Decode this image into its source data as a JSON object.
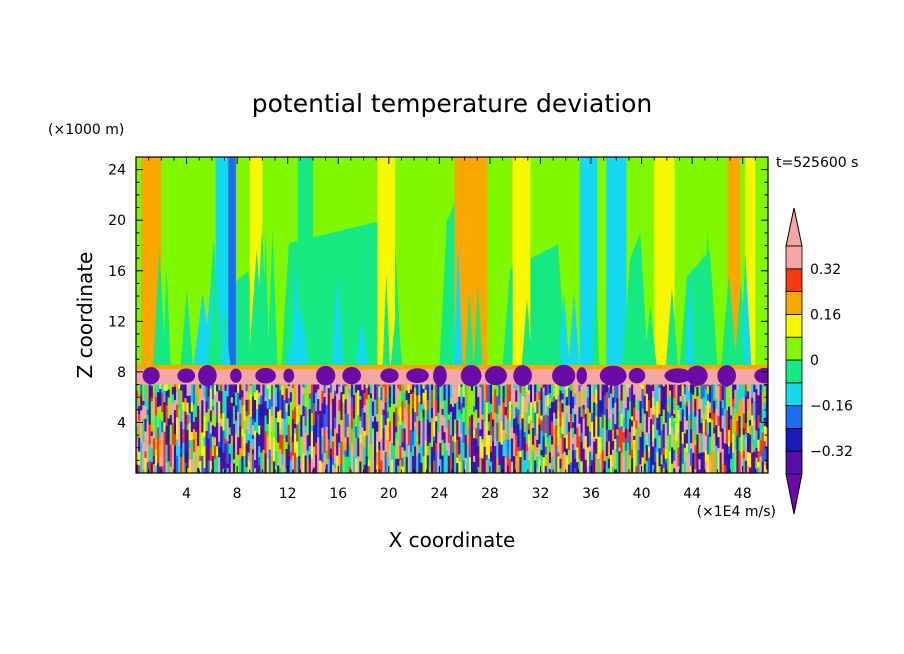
{
  "chart_data": {
    "type": "heatmap",
    "title": "potential temperature deviation",
    "xlabel": "X coordinate",
    "ylabel": "Z coordinate",
    "x_unit": "(×1E4 m/s)",
    "y_unit": "(×1000 m)",
    "time_label": "t=525600 s",
    "xlim": [
      0,
      50
    ],
    "ylim": [
      0,
      25
    ],
    "x_ticks": [
      "4",
      "8",
      "12",
      "16",
      "20",
      "24",
      "28",
      "32",
      "36",
      "40",
      "44",
      "48"
    ],
    "y_ticks": [
      "4",
      "8",
      "12",
      "16",
      "20",
      "24"
    ],
    "colorbar": {
      "levels": [
        -0.4,
        -0.32,
        -0.24,
        -0.16,
        -0.08,
        0,
        0.08,
        0.16,
        0.24,
        0.32,
        0.4
      ],
      "tick_labels": [
        "-0.32",
        "-0.16",
        "0",
        "0.16",
        "0.32"
      ],
      "colors": [
        "#5a0ca8",
        "#1a1ab8",
        "#1e6cf0",
        "#14d8f0",
        "#16e882",
        "#80f800",
        "#f8f800",
        "#f8a800",
        "#f83a12",
        "#f4a6a2"
      ],
      "under_color": "#6a0aa8",
      "over_color": "#f4a6a2"
    },
    "inversion_height": 8.4,
    "column_anomalies": [
      {
        "x": 1.2,
        "width": 1.6,
        "value": 0.16
      },
      {
        "x": 6.8,
        "width": 1.0,
        "value": -0.1
      },
      {
        "x": 7.6,
        "width": 0.6,
        "value": -0.2
      },
      {
        "x": 9.5,
        "width": 1.0,
        "value": 0.12
      },
      {
        "x": 13.4,
        "width": 1.2,
        "value": -0.08
      },
      {
        "x": 19.8,
        "width": 1.4,
        "value": 0.12
      },
      {
        "x": 26.5,
        "width": 2.6,
        "value": 0.18
      },
      {
        "x": 30.5,
        "width": 1.4,
        "value": 0.12
      },
      {
        "x": 35.8,
        "width": 1.4,
        "value": -0.12
      },
      {
        "x": 38.3,
        "width": 0.7,
        "value": -0.28
      },
      {
        "x": 38.0,
        "width": 1.6,
        "value": -0.14
      },
      {
        "x": 41.8,
        "width": 1.6,
        "value": 0.12
      },
      {
        "x": 47.3,
        "width": 1.0,
        "value": 0.22
      },
      {
        "x": 48.6,
        "width": 0.8,
        "value": 0.12
      }
    ]
  }
}
